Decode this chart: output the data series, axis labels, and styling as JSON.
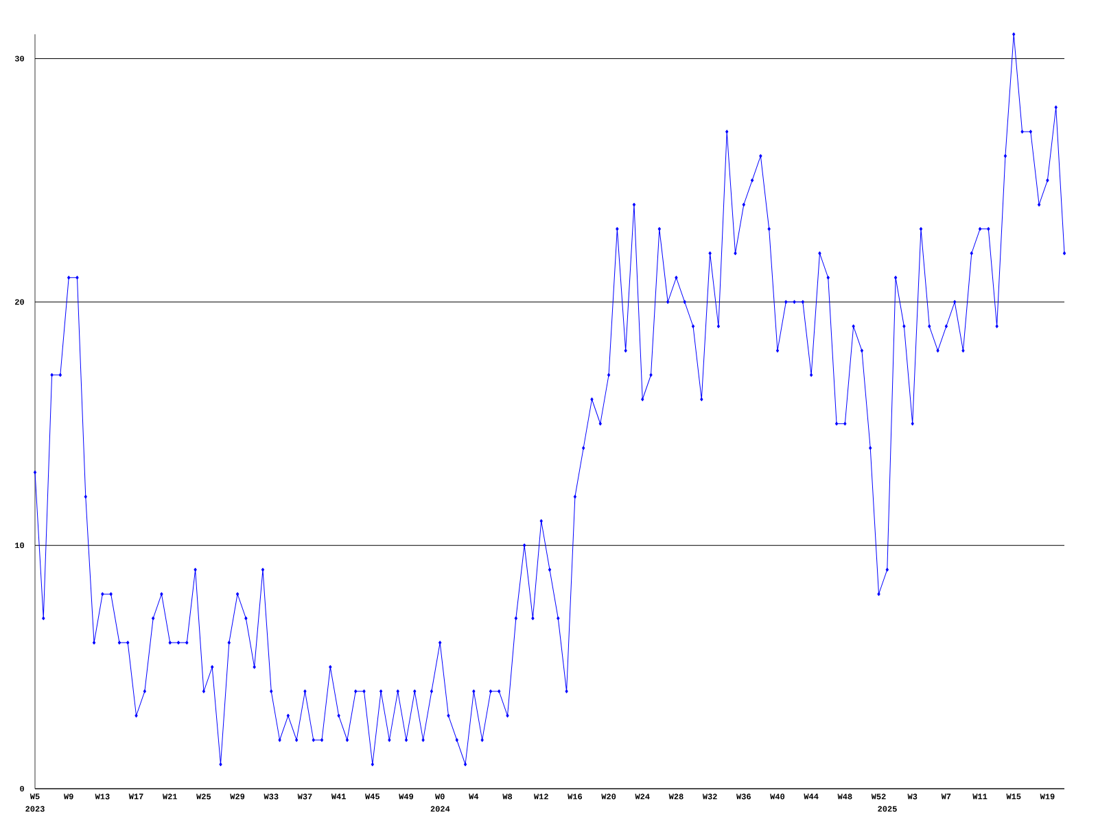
{
  "chart_data": {
    "type": "line",
    "categories": [
      "W5",
      null,
      null,
      null,
      "W9",
      null,
      null,
      null,
      "W13",
      null,
      null,
      null,
      "W17",
      null,
      null,
      null,
      "W21",
      null,
      null,
      null,
      "W25",
      null,
      null,
      null,
      "W29",
      null,
      null,
      null,
      "W33",
      null,
      null,
      null,
      "W37",
      null,
      null,
      null,
      "W41",
      null,
      null,
      null,
      "W45",
      null,
      null,
      null,
      "W49",
      null,
      null,
      null,
      "W0",
      null,
      null,
      null,
      "W4",
      null,
      null,
      null,
      "W8",
      null,
      null,
      null,
      "W12",
      null,
      null,
      null,
      "W16",
      null,
      null,
      null,
      "W20",
      null,
      null,
      null,
      "W24",
      null,
      null,
      null,
      "W28",
      null,
      null,
      null,
      "W32",
      null,
      null,
      null,
      "W36",
      null,
      null,
      null,
      "W40",
      null,
      null,
      null,
      "W44",
      null,
      null,
      null,
      "W48",
      null,
      null,
      null,
      "W52",
      null,
      null,
      null,
      "W3",
      null,
      null,
      null,
      "W7",
      null,
      null,
      null,
      "W11",
      null,
      null,
      null,
      "W15",
      null,
      null,
      null,
      "W19",
      null,
      null
    ],
    "values": [
      13,
      7,
      17,
      17,
      21,
      21,
      12,
      6,
      8,
      8,
      6,
      6,
      3,
      4,
      7,
      8,
      6,
      6,
      6,
      9,
      4,
      5,
      1,
      6,
      8,
      7,
      5,
      9,
      4,
      2,
      3,
      2,
      4,
      2,
      2,
      5,
      3,
      2,
      4,
      4,
      1,
      4,
      2,
      4,
      2,
      4,
      2,
      4,
      6,
      3,
      2,
      1,
      4,
      2,
      4,
      4,
      3,
      7,
      10,
      7,
      11,
      9,
      7,
      4,
      12,
      14,
      16,
      15,
      17,
      23,
      18,
      24,
      16,
      17,
      23,
      20,
      21,
      20,
      19,
      16,
      22,
      19,
      27,
      22,
      24,
      25,
      26,
      23,
      18,
      20,
      20,
      20,
      17,
      22,
      21,
      15,
      15,
      19,
      18,
      14,
      8,
      9,
      21,
      19,
      15,
      23,
      19,
      18,
      19,
      20,
      18,
      22,
      23,
      23,
      19,
      26,
      31,
      27,
      27,
      24,
      25,
      28,
      22
    ],
    "color": "#0000ff",
    "marker": "diamond",
    "line_style": "solid",
    "ylim": [
      0,
      31
    ],
    "yticks": [
      0,
      10,
      20,
      30
    ],
    "grid": "y",
    "x2lim": [
      2023.094,
      2025.396
    ],
    "x2ticks": [
      {
        "value": 2023.094,
        "label": "2023"
      },
      2024,
      2025
    ]
  }
}
